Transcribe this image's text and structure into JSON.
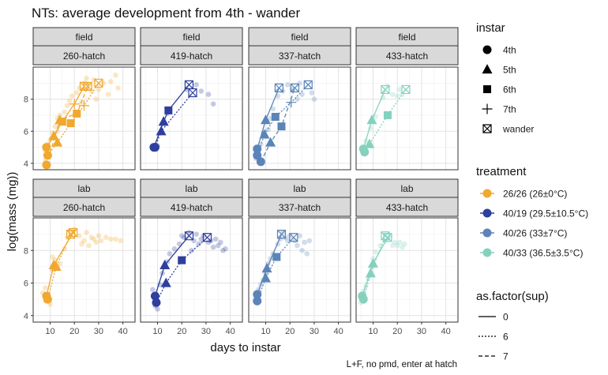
{
  "chart_data": {
    "type": "scatter",
    "title": "NTs: average development from 4th - wander",
    "xlabel": "days to instar",
    "ylabel": "log(mass (mg))",
    "caption": "L+F, no pmd, enter at hatch",
    "xlim": [
      3,
      45
    ],
    "ylim": [
      3.6,
      10.0
    ],
    "x_ticks": [
      10,
      20,
      30,
      40
    ],
    "y_ticks": [
      4,
      6,
      8
    ],
    "grid": true,
    "facet_rows": [
      "field",
      "lab"
    ],
    "facet_cols": [
      "260-hatch",
      "419-hatch",
      "337-hatch",
      "433-hatch"
    ],
    "treatment_colors": {
      "260-hatch": "#F0A830",
      "419-hatch": "#2E3F9E",
      "337-hatch": "#5B84B8",
      "433-hatch": "#86D1BE"
    },
    "legend": {
      "instar_title": "instar",
      "instar_items": [
        {
          "label": "4th",
          "shape": "circle"
        },
        {
          "label": "5th",
          "shape": "triangle"
        },
        {
          "label": "6th",
          "shape": "square"
        },
        {
          "label": "7th",
          "shape": "plus"
        },
        {
          "label": "wander",
          "shape": "boxx"
        }
      ],
      "treatment_title": "treatment",
      "treatment_items": [
        {
          "label": "26/26 (26±0°C)",
          "color": "#F0A830"
        },
        {
          "label": "40/19 (29.5±10.5°C)",
          "color": "#2E3F9E"
        },
        {
          "label": "40/26 (33±7°C)",
          "color": "#5B84B8"
        },
        {
          "label": "40/33 (36.5±3.5°C)",
          "color": "#86D1BE"
        }
      ],
      "sup_title": "as.factor(sup)",
      "sup_items": [
        {
          "label": "0",
          "dash": "solid"
        },
        {
          "label": "6",
          "dash": "dotted"
        },
        {
          "label": "7",
          "dash": "dashed"
        }
      ]
    },
    "panels": [
      {
        "row": "field",
        "col": "260-hatch",
        "series": [
          {
            "sup": "0",
            "points": [
              [
                8.5,
                5.0,
                "4th"
              ],
              [
                11.5,
                5.7,
                "5th"
              ],
              [
                15.0,
                6.6,
                "6th"
              ],
              [
                20.0,
                7.7,
                "7th"
              ],
              [
                24.0,
                8.8,
                "wander"
              ]
            ]
          },
          {
            "sup": "6",
            "points": [
              [
                9.0,
                4.5,
                "4th"
              ],
              [
                13.0,
                5.3,
                "5th"
              ],
              [
                18.5,
                6.5,
                "6th"
              ],
              [
                24.0,
                7.6,
                "7th"
              ],
              [
                30.0,
                9.0,
                "wander"
              ]
            ]
          },
          {
            "sup": "7",
            "points": [
              [
                8.5,
                3.9,
                "4th"
              ],
              [
                14.0,
                6.7,
                "5th"
              ],
              [
                21.0,
                7.1,
                "6th"
              ],
              [
                25.5,
                8.8,
                "wander"
              ]
            ]
          }
        ],
        "raw": [
          [
            8,
            4.8
          ],
          [
            9,
            5.2
          ],
          [
            8,
            4.2
          ],
          [
            9,
            3.8
          ],
          [
            10,
            5.5
          ],
          [
            11,
            5.9
          ],
          [
            12,
            6.3
          ],
          [
            13,
            6.8
          ],
          [
            14,
            7.0
          ],
          [
            16,
            7.2
          ],
          [
            17,
            7.6
          ],
          [
            18,
            7.9
          ],
          [
            19,
            8.2
          ],
          [
            21,
            8.4
          ],
          [
            22,
            8.7
          ],
          [
            24,
            9.0
          ],
          [
            26,
            8.9
          ],
          [
            28,
            9.2
          ],
          [
            30,
            8.6
          ],
          [
            32,
            9.0
          ],
          [
            35,
            9.1
          ],
          [
            37,
            9.5
          ],
          [
            38,
            8.7
          ],
          [
            13,
            6.0
          ],
          [
            15,
            6.5
          ],
          [
            20,
            7.0
          ],
          [
            23,
            7.8
          ],
          [
            27,
            8.5
          ],
          [
            29,
            8.0
          ],
          [
            25,
            9.3
          ],
          [
            34,
            8.3
          ]
        ]
      },
      {
        "row": "field",
        "col": "419-hatch",
        "series": [
          {
            "sup": "0",
            "points": [
              [
                8.5,
                5.0,
                "4th"
              ],
              [
                12.5,
                6.6,
                "5th"
              ],
              [
                14.5,
                7.3,
                "6th"
              ],
              [
                23.0,
                8.9,
                "wander"
              ]
            ]
          },
          {
            "sup": "6",
            "points": [
              [
                9.0,
                5.0,
                "4th"
              ],
              [
                11.5,
                6.0,
                "5th"
              ],
              [
                24.5,
                8.4,
                "wander"
              ]
            ]
          }
        ],
        "raw": [
          [
            9,
            4.9
          ],
          [
            10,
            5.1
          ],
          [
            12,
            6.5
          ],
          [
            14,
            7.1
          ],
          [
            22,
            8.6
          ],
          [
            26,
            8.9
          ],
          [
            28,
            8.5
          ],
          [
            31,
            8.3
          ],
          [
            33,
            7.7
          ]
        ]
      },
      {
        "row": "field",
        "col": "337-hatch",
        "series": [
          {
            "sup": "0",
            "points": [
              [
                6.5,
                4.9,
                "4th"
              ],
              [
                10.0,
                6.7,
                "5th"
              ],
              [
                15.5,
                8.7,
                "wander"
              ]
            ]
          },
          {
            "sup": "6",
            "points": [
              [
                6.5,
                4.5,
                "4th"
              ],
              [
                9.5,
                5.8,
                "5th"
              ],
              [
                14.0,
                6.9,
                "6th"
              ],
              [
                20.5,
                7.8,
                "7th"
              ],
              [
                27.5,
                8.9,
                "wander"
              ]
            ]
          },
          {
            "sup": "7",
            "points": [
              [
                8.0,
                4.1,
                "4th"
              ],
              [
                12.0,
                5.3,
                "5th"
              ],
              [
                16.5,
                6.3,
                "6th"
              ],
              [
                22.0,
                8.7,
                "wander"
              ]
            ]
          }
        ],
        "raw": [
          [
            6,
            4.3
          ],
          [
            7,
            4.7
          ],
          [
            8,
            5.2
          ],
          [
            9,
            5.9
          ],
          [
            11,
            6.1
          ],
          [
            12,
            6.8
          ],
          [
            13,
            7.4
          ],
          [
            15,
            8.2
          ],
          [
            17,
            8.5
          ],
          [
            19,
            8.9
          ],
          [
            21,
            8.6
          ],
          [
            23,
            8.0
          ],
          [
            25,
            8.3
          ],
          [
            29,
            8.4
          ],
          [
            30,
            8.0
          ],
          [
            24,
            9.0
          ]
        ]
      },
      {
        "row": "field",
        "col": "433-hatch",
        "series": [
          {
            "sup": "0",
            "points": [
              [
                6.0,
                4.9,
                "4th"
              ],
              [
                9.5,
                6.7,
                "5th"
              ],
              [
                15.0,
                8.6,
                "wander"
              ]
            ]
          },
          {
            "sup": "6",
            "points": [
              [
                6.5,
                4.7,
                "4th"
              ],
              [
                8.5,
                5.2,
                "5th"
              ],
              [
                16.0,
                7.0,
                "6th"
              ],
              [
                23.5,
                8.6,
                "wander"
              ]
            ]
          }
        ],
        "raw": [
          [
            6,
            4.6
          ],
          [
            7,
            5.4
          ],
          [
            9,
            6.2
          ],
          [
            11,
            6.9
          ],
          [
            14,
            8.1
          ],
          [
            16,
            8.8
          ],
          [
            18,
            8.3
          ],
          [
            20,
            8.2
          ],
          [
            21,
            8.6
          ],
          [
            22,
            8.3
          ]
        ]
      },
      {
        "row": "lab",
        "col": "260-hatch",
        "series": [
          {
            "sup": "0",
            "points": [
              [
                8.5,
                5.2,
                "4th"
              ],
              [
                11.5,
                7.1,
                "5th"
              ],
              [
                19.5,
                9.1,
                "wander"
              ]
            ]
          },
          {
            "sup": "6",
            "points": [
              [
                9.0,
                5.0,
                "4th"
              ],
              [
                12.5,
                7.0,
                "5th"
              ],
              [
                18.5,
                9.0,
                "wander"
              ]
            ]
          }
        ],
        "raw": [
          [
            7,
            5.4
          ],
          [
            8,
            5.7
          ],
          [
            8,
            4.9
          ],
          [
            9,
            5.3
          ],
          [
            10,
            4.7
          ],
          [
            11,
            6.8
          ],
          [
            12,
            7.4
          ],
          [
            13,
            7.0
          ],
          [
            11,
            7.6
          ],
          [
            14,
            7.2
          ],
          [
            17,
            8.8
          ],
          [
            18,
            9.2
          ],
          [
            20,
            9.3
          ],
          [
            22,
            8.9
          ],
          [
            24,
            8.6
          ],
          [
            25,
            9.1
          ],
          [
            27,
            8.8
          ],
          [
            28,
            8.7
          ],
          [
            30,
            8.9
          ],
          [
            31,
            8.6
          ],
          [
            33,
            8.8
          ],
          [
            35,
            8.7
          ],
          [
            37,
            8.7
          ],
          [
            39,
            8.6
          ],
          [
            16,
            8.1
          ],
          [
            23,
            8.4
          ],
          [
            26,
            8.3
          ],
          [
            29,
            8.5
          ]
        ]
      },
      {
        "row": "lab",
        "col": "419-hatch",
        "series": [
          {
            "sup": "0",
            "points": [
              [
                9.0,
                5.2,
                "4th"
              ],
              [
                13.0,
                7.1,
                "5th"
              ],
              [
                23.0,
                8.9,
                "wander"
              ]
            ]
          },
          {
            "sup": "6",
            "points": [
              [
                9.5,
                4.8,
                "4th"
              ],
              [
                13.5,
                6.0,
                "5th"
              ],
              [
                20.0,
                7.4,
                "6th"
              ],
              [
                30.5,
                8.8,
                "wander"
              ]
            ]
          }
        ],
        "raw": [
          [
            8,
            5.6
          ],
          [
            9,
            4.6
          ],
          [
            10,
            4.4
          ],
          [
            11,
            5.9
          ],
          [
            12,
            6.6
          ],
          [
            14,
            7.3
          ],
          [
            15,
            7.8
          ],
          [
            17,
            8.1
          ],
          [
            19,
            8.4
          ],
          [
            21,
            8.8
          ],
          [
            23,
            9.1
          ],
          [
            25,
            8.6
          ],
          [
            27,
            8.4
          ],
          [
            29,
            8.9
          ],
          [
            31,
            8.5
          ],
          [
            33,
            8.2
          ],
          [
            35,
            8.3
          ],
          [
            37,
            8.0
          ],
          [
            38,
            8.1
          ],
          [
            20,
            8.9
          ],
          [
            24,
            8.0
          ],
          [
            26,
            9.0
          ],
          [
            28,
            8.7
          ],
          [
            32,
            8.6
          ],
          [
            34,
            8.7
          ],
          [
            36,
            8.5
          ]
        ]
      },
      {
        "row": "lab",
        "col": "337-hatch",
        "series": [
          {
            "sup": "0",
            "points": [
              [
                6.5,
                5.3,
                "4th"
              ],
              [
                10.5,
                6.9,
                "5th"
              ],
              [
                16.5,
                9.0,
                "wander"
              ]
            ]
          },
          {
            "sup": "6",
            "points": [
              [
                6.5,
                4.9,
                "4th"
              ],
              [
                10.0,
                6.3,
                "5th"
              ],
              [
                14.5,
                7.6,
                "6th"
              ],
              [
                21.5,
                8.8,
                "wander"
              ]
            ]
          }
        ],
        "raw": [
          [
            6,
            5.2
          ],
          [
            7,
            5.6
          ],
          [
            8,
            5.9
          ],
          [
            9,
            6.2
          ],
          [
            10,
            6.6
          ],
          [
            11,
            7.2
          ],
          [
            12,
            7.5
          ],
          [
            13,
            7.8
          ],
          [
            15,
            8.4
          ],
          [
            16,
            8.7
          ],
          [
            17,
            9.1
          ],
          [
            18,
            8.8
          ],
          [
            19,
            8.6
          ],
          [
            20,
            8.9
          ],
          [
            22,
            8.6
          ],
          [
            23,
            8.3
          ],
          [
            24,
            8.9
          ],
          [
            25,
            8.0
          ],
          [
            26,
            8.5
          ],
          [
            27,
            7.8
          ],
          [
            28,
            8.6
          ]
        ]
      },
      {
        "row": "lab",
        "col": "433-hatch",
        "series": [
          {
            "sup": "0",
            "points": [
              [
                5.5,
                5.2,
                "4th"
              ],
              [
                10.0,
                7.2,
                "5th"
              ],
              [
                16.0,
                8.8,
                "wander"
              ]
            ]
          },
          {
            "sup": "6",
            "points": [
              [
                6.0,
                5.0,
                "4th"
              ],
              [
                9.0,
                6.6,
                "5th"
              ],
              [
                15.0,
                8.9,
                "wander"
              ]
            ]
          }
        ],
        "raw": [
          [
            5,
            4.8
          ],
          [
            6,
            5.5
          ],
          [
            7,
            5.8
          ],
          [
            8,
            6.3
          ],
          [
            9,
            7.0
          ],
          [
            10,
            7.5
          ],
          [
            11,
            7.9
          ],
          [
            13,
            8.3
          ],
          [
            15,
            8.6
          ],
          [
            17,
            8.9
          ],
          [
            19,
            8.5
          ],
          [
            20,
            8.3
          ],
          [
            21,
            8.5
          ],
          [
            22,
            8.2
          ],
          [
            18,
            8.3
          ],
          [
            23,
            8.4
          ]
        ]
      }
    ]
  }
}
